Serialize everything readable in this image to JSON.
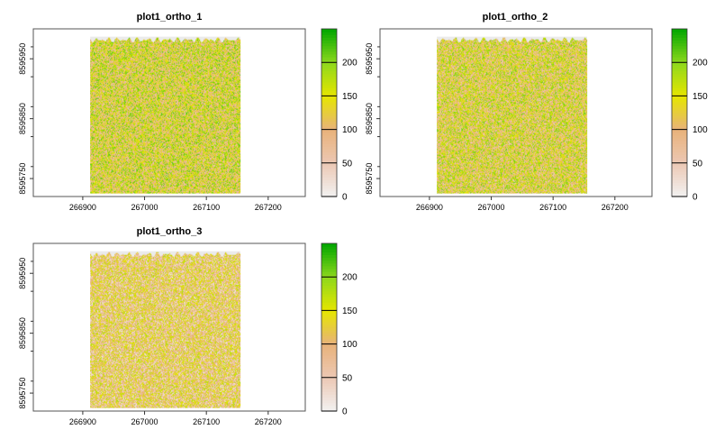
{
  "chart_data": [
    {
      "type": "heatmap",
      "title": "plot1_ortho_1",
      "xlabel": "",
      "ylabel": "",
      "xlim": [
        266820,
        267260
      ],
      "ylim": [
        8595720,
        8596000
      ],
      "x_ticks": [
        266900,
        267000,
        267100,
        267200
      ],
      "x_tick_labels": [
        "266900",
        "267000",
        "267100",
        "267200"
      ],
      "y_ticks": [
        8595750,
        8595850,
        8595950
      ],
      "y_tick_labels": [
        "8595750",
        "8595850",
        "8595950"
      ],
      "raster_extent": {
        "x": [
          266912,
          267155
        ],
        "y": [
          8595725,
          8595987
        ]
      },
      "value_mean": 135,
      "legend": {
        "min": 0,
        "max": 250,
        "breaks": [
          0,
          50,
          100,
          150,
          200
        ],
        "labels": [
          "0",
          "50",
          "100",
          "150",
          "200"
        ],
        "placement": "right"
      }
    },
    {
      "type": "heatmap",
      "title": "plot1_ortho_2",
      "xlabel": "",
      "ylabel": "",
      "xlim": [
        266820,
        267260
      ],
      "ylim": [
        8595720,
        8596000
      ],
      "x_ticks": [
        266900,
        267000,
        267100,
        267200
      ],
      "x_tick_labels": [
        "266900",
        "267000",
        "267100",
        "267200"
      ],
      "y_ticks": [
        8595750,
        8595850,
        8595950
      ],
      "y_tick_labels": [
        "8595750",
        "8595850",
        "8595950"
      ],
      "raster_extent": {
        "x": [
          266912,
          267155
        ],
        "y": [
          8595725,
          8595987
        ]
      },
      "value_mean": 128,
      "legend": {
        "min": 0,
        "max": 250,
        "breaks": [
          0,
          50,
          100,
          150,
          200
        ],
        "labels": [
          "0",
          "50",
          "100",
          "150",
          "200"
        ],
        "placement": "right"
      }
    },
    {
      "type": "heatmap",
      "title": "plot1_ortho_3",
      "xlabel": "",
      "ylabel": "",
      "xlim": [
        266820,
        267260
      ],
      "ylim": [
        8595720,
        8596000
      ],
      "x_ticks": [
        266900,
        267000,
        267100,
        267200
      ],
      "x_tick_labels": [
        "266900",
        "267000",
        "267100",
        "267200"
      ],
      "y_ticks": [
        8595750,
        8595850,
        8595950
      ],
      "y_tick_labels": [
        "8595750",
        "8595850",
        "8595950"
      ],
      "raster_extent": {
        "x": [
          266912,
          267155
        ],
        "y": [
          8595725,
          8595987
        ]
      },
      "value_mean": 100,
      "legend": {
        "min": 0,
        "max": 250,
        "breaks": [
          0,
          50,
          100,
          150,
          200
        ],
        "labels": [
          "0",
          "50",
          "100",
          "150",
          "200"
        ],
        "placement": "right"
      }
    }
  ],
  "colors": {
    "ramp": [
      "#f2f2f2",
      "#ecc8b4",
      "#e8b27a",
      "#e6e600",
      "#8ed81c",
      "#00a600"
    ],
    "frame": "#555555",
    "panel_background": "#ffffff",
    "nodata": "#ebebeb"
  }
}
